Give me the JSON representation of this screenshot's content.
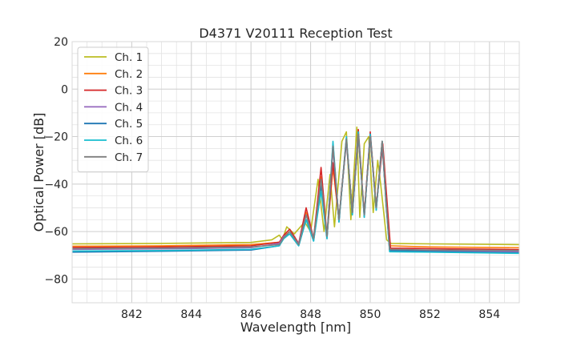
{
  "chart_data": {
    "type": "line",
    "title": "D4371 V20111 Reception Test",
    "xlabel": "Wavelength [nm]",
    "ylabel": "Optical Power [dB]",
    "xlim": [
      840,
      855
    ],
    "ylim": [
      -90,
      20
    ],
    "x_major_ticks": [
      842,
      844,
      846,
      848,
      850,
      852,
      854
    ],
    "x_tick_labels": [
      "842",
      "844",
      "846",
      "848",
      "850",
      "852",
      "854"
    ],
    "x_minor_step": 0.5,
    "y_major_ticks": [
      -80,
      -60,
      -40,
      -20,
      0,
      20
    ],
    "y_tick_labels": [
      "−80",
      "−60",
      "−40",
      "−20",
      "0",
      "20"
    ],
    "y_minor_step": 5,
    "grid": true,
    "legend_position": "top-left",
    "series": [
      {
        "name": "Ch. 1",
        "color": "#bcbd22",
        "x": [
          840,
          843,
          846,
          846.7,
          846.95,
          847.05,
          847.2,
          847.45,
          847.8,
          848.0,
          848.25,
          848.45,
          848.65,
          848.8,
          849.05,
          849.2,
          849.35,
          849.55,
          849.65,
          849.8,
          849.95,
          850.1,
          850.25,
          850.35,
          850.55,
          850.7,
          852,
          855
        ],
        "y": [
          -65.2,
          -65,
          -64.6,
          -63.5,
          -61.5,
          -63.5,
          -58,
          -61,
          -56,
          -60,
          -38,
          -60,
          -36,
          -58,
          -22,
          -18,
          -55,
          -16,
          -54,
          -23,
          -20,
          -52,
          -30,
          -40,
          -63.5,
          -65,
          -65.2,
          -65.5
        ]
      },
      {
        "name": "Ch. 2",
        "color": "#ff7f0e",
        "x": [
          840,
          843,
          846,
          846.95,
          847.1,
          847.3,
          847.6,
          847.85,
          848.1,
          848.35,
          848.55,
          848.75,
          848.95,
          849.2,
          849.4,
          849.6,
          849.8,
          850.0,
          850.2,
          850.4,
          850.52,
          850.65,
          852,
          855
        ],
        "y": [
          -66.2,
          -66,
          -65.5,
          -64.5,
          -62,
          -60,
          -65,
          -52,
          -63,
          -37,
          -62,
          -33,
          -55,
          -22,
          -52,
          -20,
          -53,
          -19,
          -50,
          -22,
          -45,
          -66,
          -66.5,
          -66.8
        ]
      },
      {
        "name": "Ch. 3",
        "color": "#d62728",
        "x": [
          840,
          843,
          846,
          846.95,
          847.1,
          847.3,
          847.6,
          847.85,
          848.1,
          848.35,
          848.55,
          848.75,
          848.95,
          849.2,
          849.4,
          849.6,
          849.8,
          850.0,
          850.2,
          850.42,
          850.55,
          850.68,
          852,
          855
        ],
        "y": [
          -66.7,
          -66.5,
          -66,
          -64.5,
          -61.5,
          -59,
          -65,
          -50,
          -63,
          -33,
          -62,
          -31,
          -55,
          -21,
          -52,
          -17,
          -53,
          -18,
          -50,
          -23,
          -45,
          -67,
          -67.2,
          -67.6
        ]
      },
      {
        "name": "Ch. 4",
        "color": "#9467bd",
        "x": [
          840,
          843,
          846,
          846.95,
          847.1,
          847.3,
          847.6,
          847.85,
          848.1,
          848.35,
          848.55,
          848.75,
          848.95,
          849.2,
          849.4,
          849.6,
          849.8,
          850.0,
          850.2,
          850.4,
          850.52,
          850.65,
          852,
          855
        ],
        "y": [
          -67.5,
          -67.3,
          -66.8,
          -65,
          -62,
          -61,
          -65,
          -53,
          -63,
          -40,
          -62,
          -25,
          -55,
          -22,
          -52,
          -20,
          -53,
          -20,
          -50,
          -23,
          -45,
          -68,
          -68.2,
          -68.5
        ]
      },
      {
        "name": "Ch. 5",
        "color": "#1f77b4",
        "x": [
          840,
          843,
          846,
          846.95,
          847.1,
          847.3,
          847.6,
          847.85,
          848.1,
          848.35,
          848.55,
          848.75,
          848.95,
          849.2,
          849.4,
          849.6,
          849.8,
          850.0,
          850.2,
          850.4,
          850.52,
          850.65,
          852,
          855
        ],
        "y": [
          -68.7,
          -68.3,
          -67.8,
          -66,
          -62.5,
          -61,
          -66,
          -55,
          -64,
          -41,
          -63,
          -23,
          -56,
          -21,
          -53,
          -19,
          -54,
          -19,
          -51,
          -22,
          -46,
          -68,
          -68.4,
          -69
        ]
      },
      {
        "name": "Ch. 6",
        "color": "#17becf",
        "x": [
          840,
          843,
          846,
          846.95,
          847.1,
          847.3,
          847.6,
          847.85,
          848.1,
          848.35,
          848.55,
          848.75,
          848.95,
          849.2,
          849.4,
          849.6,
          849.8,
          850.0,
          850.2,
          850.4,
          850.52,
          850.65,
          852,
          855
        ],
        "y": [
          -68.2,
          -68,
          -67.5,
          -66,
          -63,
          -61,
          -66,
          -55,
          -64,
          -43,
          -63,
          -22,
          -56,
          -20,
          -53,
          -18,
          -54,
          -19,
          -51,
          -22,
          -46,
          -68.5,
          -68.7,
          -69.2
        ]
      },
      {
        "name": "Ch. 7",
        "color": "#7f7f7f",
        "x": [
          840,
          843,
          846,
          846.95,
          847.1,
          847.3,
          847.6,
          847.85,
          848.1,
          848.35,
          848.55,
          848.75,
          848.95,
          849.2,
          849.4,
          849.6,
          849.8,
          850.0,
          850.2,
          850.4,
          850.52,
          850.65,
          852,
          855
        ],
        "y": [
          -67.2,
          -67,
          -66.5,
          -65.5,
          -62.5,
          -60,
          -65.5,
          -53,
          -63,
          -38,
          -62,
          -24,
          -55,
          -21,
          -52,
          -19,
          -53,
          -20,
          -50,
          -22,
          -45,
          -67.5,
          -67.8,
          -68
        ]
      }
    ]
  }
}
